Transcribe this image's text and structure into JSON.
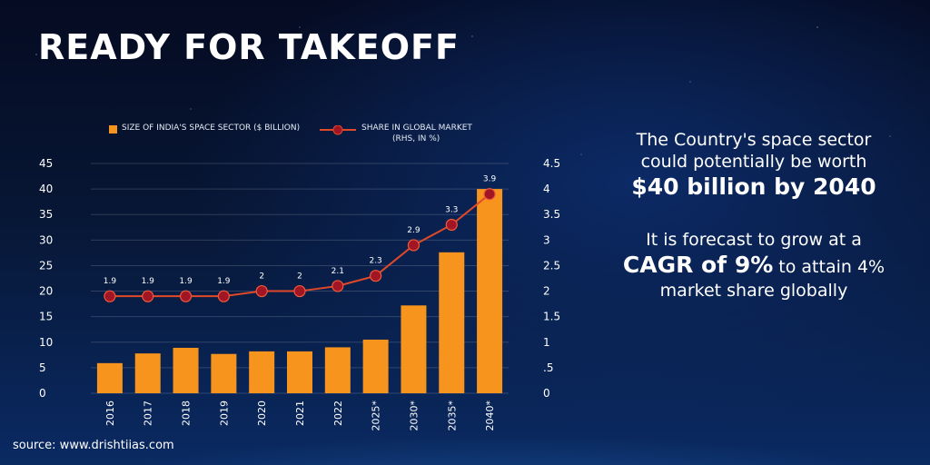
{
  "header": {
    "title": "READY FOR TAKEOFF"
  },
  "legend": {
    "bar_label": "SIZE OF INDIA'S SPACE SECTOR ($ BILLION)",
    "line_label_line1": "SHARE IN GLOBAL MARKET",
    "line_label_line2": "(RHS, IN %)"
  },
  "side_text": {
    "line1": "The Country's space sector",
    "line2": "could potentially be worth",
    "highlight1": "$40 billion by 2040",
    "line3": "It is forecast to grow at a",
    "highlight2": "CAGR of 9%",
    "line4_rest": " to attain 4%",
    "line5": "market share globally"
  },
  "source": "source: www.drishtiias.com",
  "colors": {
    "bar": "#f7941d",
    "line": "#e0492a",
    "marker": "#a01624"
  },
  "chart_data": {
    "type": "bar",
    "categories": [
      "2016",
      "2017",
      "2018",
      "2019",
      "2020",
      "2021",
      "2022",
      "2025*",
      "2030*",
      "2035*",
      "2040*"
    ],
    "series": [
      {
        "name": "SIZE OF INDIA'S SPACE SECTOR ($ BILLION)",
        "type": "bar",
        "axis": "left",
        "values": [
          5.9,
          7.8,
          8.9,
          7.7,
          8.2,
          8.2,
          9.0,
          10.5,
          17.2,
          27.6,
          40
        ]
      },
      {
        "name": "SHARE IN GLOBAL MARKET (RHS, IN %)",
        "type": "line",
        "axis": "right",
        "values": [
          1.9,
          1.9,
          1.9,
          1.9,
          2,
          2,
          2.1,
          2.3,
          2.9,
          3.3,
          3.9
        ]
      }
    ],
    "left_axis": {
      "ylim": [
        0,
        45
      ],
      "ticks": [
        "0",
        "5",
        "10",
        "15",
        "20",
        "25",
        "30",
        "35",
        "40",
        "45"
      ]
    },
    "right_axis": {
      "ylim": [
        0,
        4.5
      ],
      "ticks": [
        "0",
        ".5",
        "1",
        "1.5",
        "2",
        "2.5",
        "3",
        "3.5",
        "4",
        "4.5"
      ]
    },
    "data_labels": [
      "1.9",
      "1.9",
      "1.9",
      "1.9",
      "2",
      "2",
      "2.1",
      "2.3",
      "2.9",
      "3.3",
      "3.9"
    ],
    "grid": true,
    "legend_position": "top"
  }
}
